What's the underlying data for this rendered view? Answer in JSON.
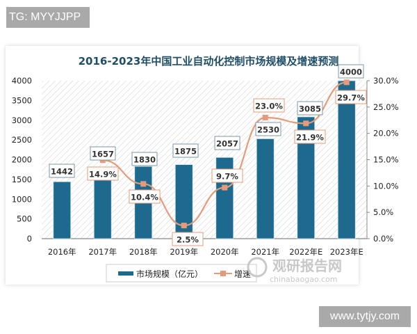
{
  "overlays": {
    "top_left_tag": "TG: MYYJJPP",
    "bottom_right_watermark": "www.tytjy.com",
    "brand_watermark_cn": "观研报告网",
    "brand_watermark_url": "chinabaogao.com"
  },
  "colors": {
    "bar": "#1e6a8f",
    "line": "#e59b7a",
    "title": "#1f4e67",
    "axis": "#888888"
  },
  "chart_data": {
    "type": "bar+line",
    "title": "2016-2023年中国工业自动化控制市场规模及增速预测",
    "categories": [
      "2016年",
      "2017年",
      "2018年",
      "2019年",
      "2020年",
      "2021年",
      "2022年E",
      "2023年E"
    ],
    "series": [
      {
        "name": "市场规模（亿元）",
        "type": "bar",
        "axis": "left",
        "values": [
          1442,
          1657,
          1830,
          1875,
          2057,
          2530,
          3085,
          4000
        ],
        "labels": [
          "1442",
          "1657",
          "1830",
          "1875",
          "2057",
          "2530",
          "3085",
          "4000"
        ]
      },
      {
        "name": "增速",
        "type": "line",
        "axis": "right",
        "values": [
          null,
          14.9,
          10.4,
          2.5,
          9.7,
          23.0,
          21.9,
          29.7
        ],
        "labels": [
          "",
          "14.9%",
          "10.4%",
          "2.5%",
          "9.7%",
          "23.0%",
          "21.9%",
          "29.7%"
        ]
      }
    ],
    "left_axis": {
      "ticks": [
        "0",
        "500",
        "1000",
        "1500",
        "2000",
        "2500",
        "3000",
        "3500",
        "4000"
      ],
      "ylim": [
        0,
        4000
      ]
    },
    "right_axis": {
      "ticks": [
        "0.0%",
        "5.0%",
        "10.0%",
        "15.0%",
        "20.0%",
        "25.0%",
        "30.0%"
      ],
      "ylim": [
        0,
        30
      ]
    },
    "legend": {
      "position": "bottom",
      "items": [
        "市场规模（亿元）",
        "增速"
      ]
    },
    "grid": false
  }
}
